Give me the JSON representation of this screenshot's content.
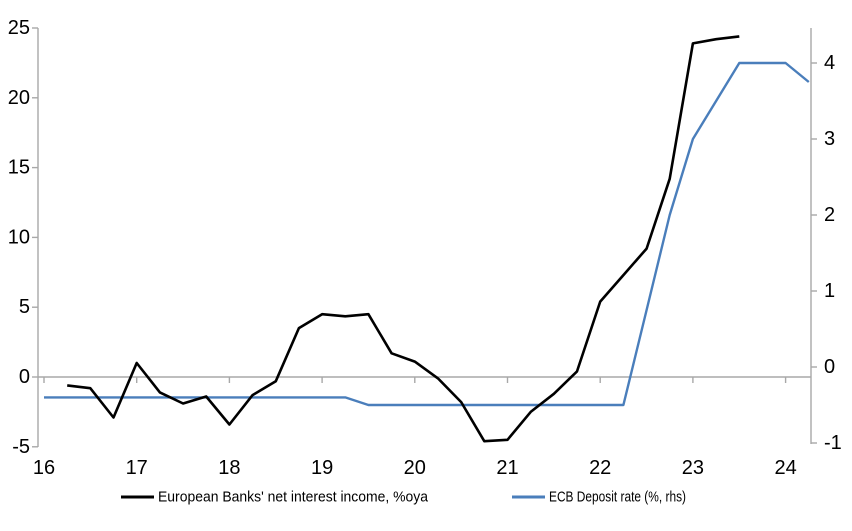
{
  "chart_data": {
    "type": "line",
    "title": "",
    "x_axis": {
      "ticks": [
        16,
        17,
        18,
        19,
        20,
        21,
        22,
        23,
        24
      ],
      "range": [
        15.94,
        24.27
      ],
      "gridlines": false
    },
    "left_axis": {
      "ticks": [
        -5,
        0,
        5,
        10,
        15,
        20,
        25
      ],
      "range": [
        -5,
        25
      ],
      "zero_line": true
    },
    "right_axis": {
      "ticks": [
        -1,
        0,
        1,
        2,
        3,
        4
      ],
      "range": [
        -1.05,
        4.47
      ]
    },
    "series": [
      {
        "name": "European Banks' net interest income, %oya",
        "axis": "left",
        "color": "#000000",
        "points": [
          [
            16.25,
            -0.6
          ],
          [
            16.5,
            -0.8
          ],
          [
            16.75,
            -2.9
          ],
          [
            17.0,
            1.0
          ],
          [
            17.25,
            -1.1
          ],
          [
            17.5,
            -1.9
          ],
          [
            17.75,
            -1.4
          ],
          [
            18.0,
            -3.4
          ],
          [
            18.25,
            -1.3
          ],
          [
            18.5,
            -0.3
          ],
          [
            18.75,
            3.5
          ],
          [
            19.0,
            4.5
          ],
          [
            19.25,
            4.35
          ],
          [
            19.5,
            4.5
          ],
          [
            19.75,
            1.7
          ],
          [
            20.0,
            1.1
          ],
          [
            20.25,
            -0.1
          ],
          [
            20.5,
            -1.8
          ],
          [
            20.75,
            -4.6
          ],
          [
            21.0,
            -4.5
          ],
          [
            21.25,
            -2.5
          ],
          [
            21.5,
            -1.2
          ],
          [
            21.75,
            0.4
          ],
          [
            22.0,
            5.4
          ],
          [
            22.25,
            7.3
          ],
          [
            22.5,
            9.2
          ],
          [
            22.75,
            14.2
          ],
          [
            23.0,
            23.9
          ],
          [
            23.25,
            24.2
          ],
          [
            23.5,
            24.4
          ]
        ]
      },
      {
        "name": "ECB Deposit rate (%, rhs)",
        "axis": "right",
        "color": "#4A7EBB",
        "points": [
          [
            16.0,
            -0.4
          ],
          [
            19.25,
            -0.4
          ],
          [
            19.5,
            -0.5
          ],
          [
            22.25,
            -0.5
          ],
          [
            22.5,
            0.75
          ],
          [
            22.75,
            2.0
          ],
          [
            23.0,
            3.0
          ],
          [
            23.25,
            3.5
          ],
          [
            23.5,
            4.0
          ],
          [
            24.0,
            4.0
          ],
          [
            24.25,
            3.75
          ]
        ]
      }
    ],
    "legend": {
      "position": "bottom",
      "items": [
        {
          "label": "European Banks' net interest income, %oya",
          "color": "#000000"
        },
        {
          "label": "ECB Deposit rate (%, rhs)",
          "color": "#4A7EBB"
        }
      ]
    },
    "colors": {
      "axis_gray": "#A8A8A8",
      "series_black": "#000000",
      "series_blue": "#4A7EBB"
    }
  }
}
